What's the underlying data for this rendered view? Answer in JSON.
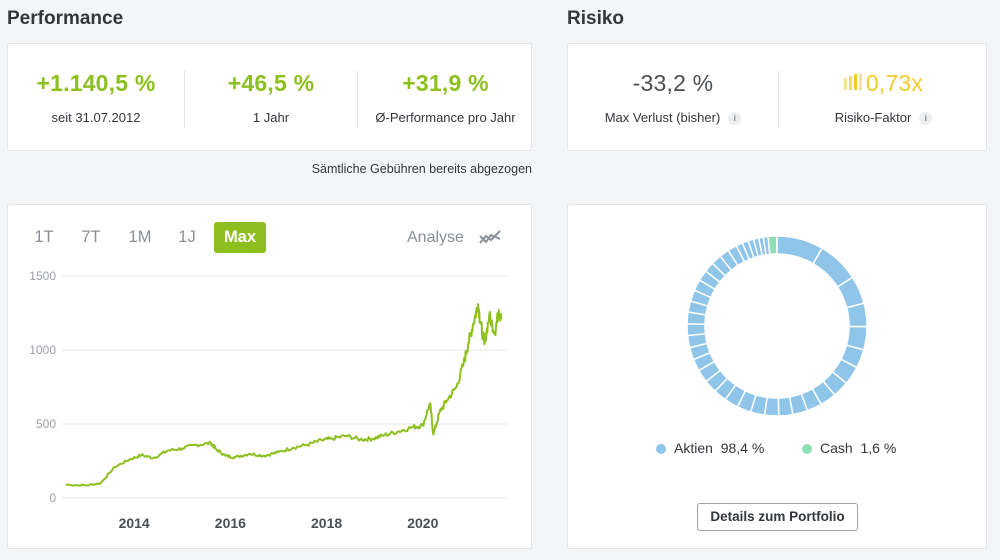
{
  "performance": {
    "title": "Performance",
    "stats": [
      {
        "value": "+1.140,5 %",
        "label": "seit 31.07.2012"
      },
      {
        "value": "+46,5 %",
        "label": "1 Jahr"
      },
      {
        "value": "+31,9 %",
        "label": "Ø-Performance pro Jahr"
      }
    ],
    "note": "Sämtliche Gebühren bereits abgezogen"
  },
  "risk": {
    "title": "Risiko",
    "max_loss": {
      "value": "-33,2 %",
      "label": "Max Verlust (bisher)"
    },
    "factor": {
      "value": "0,73x",
      "label": "Risiko-Faktor"
    },
    "info_glyph": "i"
  },
  "chart_controls": {
    "tabs": [
      "1T",
      "7T",
      "1M",
      "1J",
      "Max"
    ],
    "active_tab": "Max",
    "analyse_label": "Analyse",
    "analyse_icon": "trend-lines-icon"
  },
  "chart_data": {
    "type": "line",
    "yticks": [
      "0",
      "500",
      "1000",
      "1500"
    ],
    "xticks": [
      "2014",
      "2016",
      "2018",
      "2020"
    ],
    "ylim": [
      0,
      1500
    ],
    "grid": true,
    "color": "#8dbf1f",
    "x": [
      2012.58,
      2013.0,
      2013.3,
      2013.6,
      2013.9,
      2014.15,
      2014.4,
      2014.7,
      2015.0,
      2015.3,
      2015.6,
      2015.7,
      2015.9,
      2016.1,
      2016.4,
      2016.7,
      2017.0,
      2017.3,
      2017.6,
      2017.9,
      2018.1,
      2018.4,
      2018.7,
      2018.95,
      2019.2,
      2019.5,
      2019.8,
      2020.0,
      2020.15,
      2020.22,
      2020.35,
      2020.5,
      2020.7,
      2020.85,
      2020.95,
      2021.05,
      2021.15,
      2021.2,
      2021.28,
      2021.38,
      2021.5,
      2021.58,
      2021.63
    ],
    "values": [
      90,
      85,
      100,
      210,
      260,
      290,
      270,
      320,
      335,
      360,
      370,
      330,
      285,
      275,
      300,
      285,
      310,
      340,
      360,
      390,
      400,
      420,
      395,
      400,
      425,
      450,
      480,
      490,
      640,
      430,
      580,
      660,
      750,
      910,
      1050,
      1180,
      1310,
      1180,
      1040,
      1230,
      1120,
      1270,
      1210
    ]
  },
  "allocation": {
    "items": [
      {
        "name": "Aktien",
        "value": "98,4 %",
        "color": "#8ec5e9",
        "share": 98.4
      },
      {
        "name": "Cash",
        "value": "1,6 %",
        "color": "#8ee0b4",
        "share": 1.6
      }
    ],
    "button": "Details zum Portfolio"
  }
}
